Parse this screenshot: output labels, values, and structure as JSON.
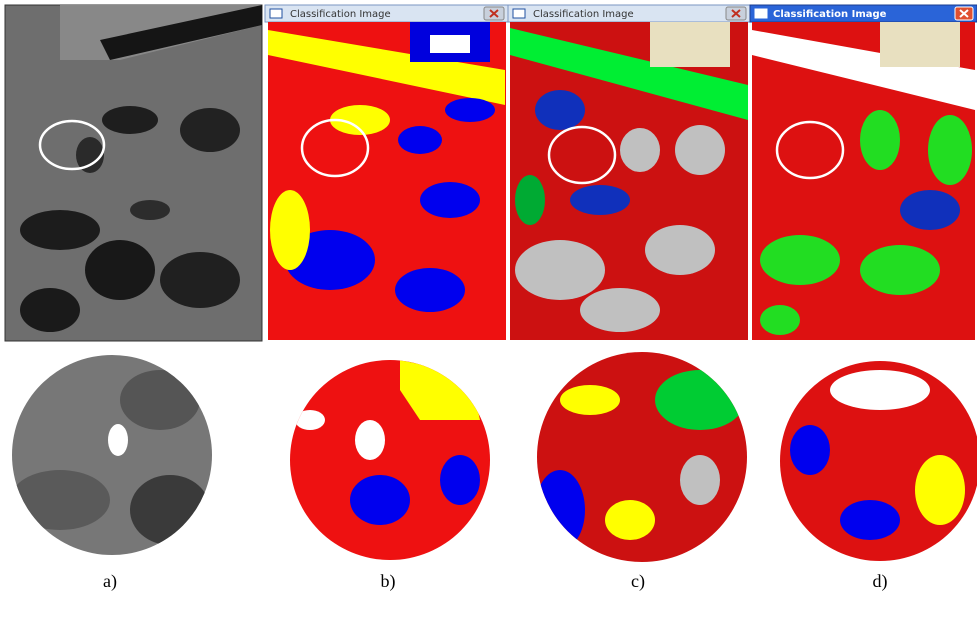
{
  "panels": [
    {
      "label": "a)"
    },
    {
      "window_title": "Classification Image",
      "label": "b)"
    },
    {
      "window_title": "Classification Image",
      "label": "c)"
    },
    {
      "window_title": "Classification Image",
      "label": "d)"
    }
  ]
}
